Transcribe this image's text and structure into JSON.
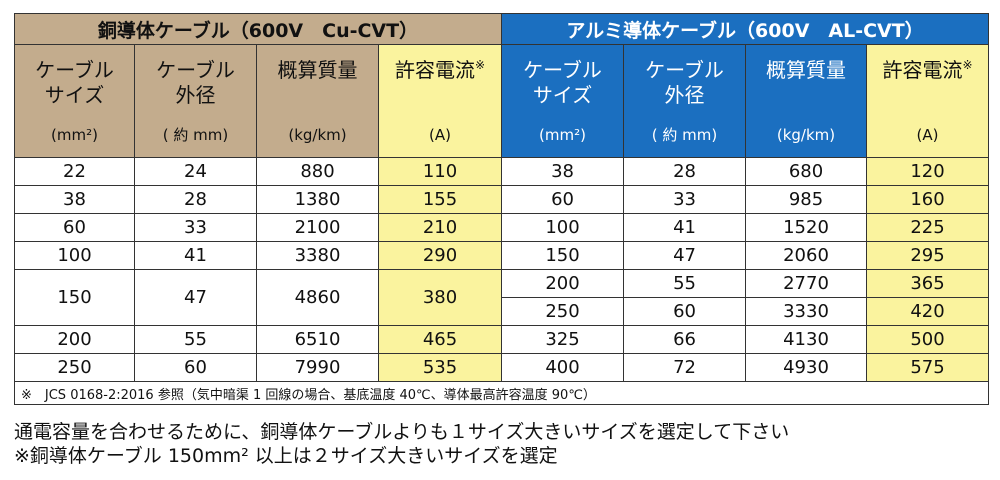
{
  "copper": {
    "title": "銅導体ケーブル（600V　Cu-CVT）",
    "headers": [
      {
        "label": "ケーブル\nサイズ",
        "unit": "(mm²)"
      },
      {
        "label": "ケーブル\n外径",
        "unit": "( 約 mm)"
      },
      {
        "label": "概算質量",
        "unit": "(kg/km)"
      },
      {
        "label": "許容電流",
        "mark": "※",
        "unit": "(A)"
      }
    ],
    "rows": [
      {
        "size": "22",
        "dia": "24",
        "mass": "880",
        "amp": "110"
      },
      {
        "size": "38",
        "dia": "28",
        "mass": "1380",
        "amp": "155"
      },
      {
        "size": "60",
        "dia": "33",
        "mass": "2100",
        "amp": "210"
      },
      {
        "size": "100",
        "dia": "41",
        "mass": "3380",
        "amp": "290"
      },
      {
        "size": "150",
        "dia": "47",
        "mass": "4860",
        "amp": "380"
      },
      {
        "size": "200",
        "dia": "55",
        "mass": "6510",
        "amp": "465"
      },
      {
        "size": "250",
        "dia": "60",
        "mass": "7990",
        "amp": "535"
      }
    ]
  },
  "aluminum": {
    "title": "アルミ導体ケーブル（600V　AL-CVT）",
    "headers": [
      {
        "label": "ケーブル\nサイズ",
        "unit": "(mm²)"
      },
      {
        "label": "ケーブル\n外径",
        "unit": "( 約 mm)"
      },
      {
        "label": "概算質量",
        "unit": "(kg/km)"
      },
      {
        "label": "許容電流",
        "mark": "※",
        "unit": "(A)"
      }
    ],
    "rows": [
      {
        "size": "38",
        "dia": "28",
        "mass": "680",
        "amp": "120"
      },
      {
        "size": "60",
        "dia": "33",
        "mass": "985",
        "amp": "160"
      },
      {
        "size": "100",
        "dia": "41",
        "mass": "1520",
        "amp": "225"
      },
      {
        "size": "150",
        "dia": "47",
        "mass": "2060",
        "amp": "295"
      },
      {
        "size": "200",
        "dia": "55",
        "mass": "2770",
        "amp": "365"
      },
      {
        "size": "250",
        "dia": "60",
        "mass": "3330",
        "amp": "420"
      },
      {
        "size": "325",
        "dia": "66",
        "mass": "4130",
        "amp": "500"
      },
      {
        "size": "400",
        "dia": "72",
        "mass": "4930",
        "amp": "575"
      }
    ]
  },
  "footnote": "※　JCS 0168-2:2016 参照（気中暗渠 1 回線の場合、基底温度 40℃、導体最高許容温度 90℃）",
  "remarks": [
    "通電容量を合わせるために、銅導体ケーブルよりも１サイズ大きいサイズを選定して下さい",
    "※銅導体ケーブル 150mm² 以上は２サイズ大きいサイズを選定"
  ],
  "colors": {
    "copper_header": "#c3ac8d",
    "aluminum_header": "#1b6fc0",
    "ampacity_highlight": "#faf39e"
  }
}
